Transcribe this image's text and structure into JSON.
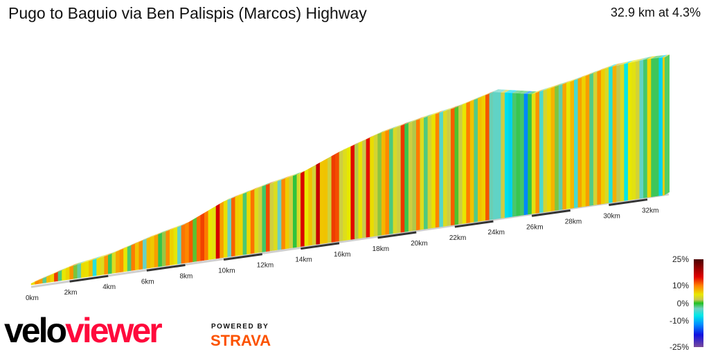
{
  "title": "Pugo to Baguio via Ben Palispis (Marcos) Highway",
  "summary": "32.9 km at 4.3%",
  "chart_data": {
    "type": "area",
    "style": "3d-ribbon elevation profile colored by gradient",
    "title": "Pugo to Baguio via Ben Palispis (Marcos) Highway",
    "distance_km": [
      0,
      2,
      4,
      6,
      8,
      10,
      12,
      14,
      16,
      18,
      20,
      22,
      24,
      26,
      28,
      30,
      32,
      32.9
    ],
    "relative_elevation_m": [
      14,
      126,
      189,
      301,
      392,
      567,
      665,
      742,
      903,
      1029,
      1113,
      1183,
      1288,
      1211,
      1281,
      1372,
      1400,
      1393
    ],
    "x_ticks": [
      "0km",
      "2km",
      "4km",
      "6km",
      "8km",
      "10km",
      "12km",
      "14km",
      "16km",
      "18km",
      "20km",
      "22km",
      "24km",
      "26km",
      "28km",
      "30km",
      "32km"
    ],
    "xlim": [
      0,
      32.9
    ],
    "gradient_legend": {
      "labels": [
        "25%",
        "10%",
        "0%",
        "-10%",
        "-25%"
      ],
      "stops": [
        {
          "pct": 25,
          "color": "#4a0000"
        },
        {
          "pct": 15,
          "color": "#e00000"
        },
        {
          "pct": 10,
          "color": "#ff8000"
        },
        {
          "pct": 5,
          "color": "#e8e800"
        },
        {
          "pct": 2,
          "color": "#c8c850"
        },
        {
          "pct": 0,
          "color": "#20c020"
        },
        {
          "pct": -3,
          "color": "#70d0c0"
        },
        {
          "pct": -7,
          "color": "#00e8e8"
        },
        {
          "pct": -12,
          "color": "#0090ff"
        },
        {
          "pct": -18,
          "color": "#1010e0"
        },
        {
          "pct": -25,
          "color": "#7a4a9a"
        }
      ]
    }
  },
  "branding": {
    "logo_part1": "velo",
    "logo_part2": "viewer",
    "powered_by": "POWERED BY",
    "strava": "STRAVA"
  }
}
